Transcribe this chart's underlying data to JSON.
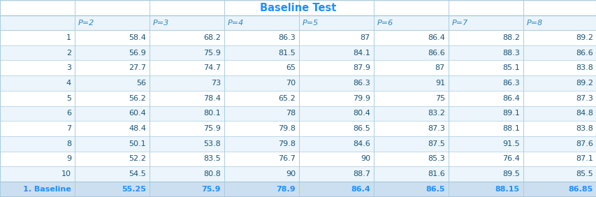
{
  "title": "Baseline Test",
  "title_color": "#1E90FF",
  "col_headers_display": [
    "",
    "P=2",
    "P=3",
    "P=4",
    "P=5",
    "P=6",
    "P=7",
    "P=8"
  ],
  "rows": [
    [
      "1",
      "58.4",
      "68.2",
      "86.3",
      "87",
      "86.4",
      "88.2",
      "89.2"
    ],
    [
      "2",
      "56.9",
      "75.9",
      "81.5",
      "84.1",
      "86.6",
      "88.3",
      "86.6"
    ],
    [
      "3",
      "27.7",
      "74.7",
      "65",
      "87.9",
      "87",
      "85.1",
      "83.8"
    ],
    [
      "4",
      "56",
      "73",
      "70",
      "86.3",
      "91",
      "86.3",
      "89.2"
    ],
    [
      "5",
      "56.2",
      "78.4",
      "65.2",
      "79.9",
      "75",
      "86.4",
      "87.3"
    ],
    [
      "6",
      "60.4",
      "80.1",
      "78",
      "80.4",
      "83.2",
      "89.1",
      "84.8"
    ],
    [
      "7",
      "48.4",
      "75.9",
      "79.8",
      "86.5",
      "87.3",
      "88.1",
      "83.8"
    ],
    [
      "8",
      "50.1",
      "53.8",
      "79.8",
      "84.6",
      "87.5",
      "91.5",
      "87.6"
    ],
    [
      "9",
      "52.2",
      "83.5",
      "76.7",
      "90",
      "85.3",
      "76.4",
      "87.1"
    ],
    [
      "10",
      "54.5",
      "80.8",
      "90",
      "88.7",
      "81.6",
      "89.5",
      "85.5"
    ]
  ],
  "footer_row": [
    "1. Baseline",
    "55.25",
    "75.9",
    "78.9",
    "86.4",
    "86.5",
    "88.15",
    "86.85"
  ],
  "title_bg": "#FFFFFF",
  "header_bg": "#EBF4FB",
  "row_bg_odd": "#FFFFFF",
  "row_bg_even": "#EBF5FB",
  "footer_bg": "#CCDFF0",
  "border_color": "#AACCE0",
  "data_text_color": "#1A5276",
  "header_text_color": "#2E86C1",
  "footer_text_color": "#1E90FF",
  "title_fontsize": 10.5,
  "cell_fontsize": 8.0
}
